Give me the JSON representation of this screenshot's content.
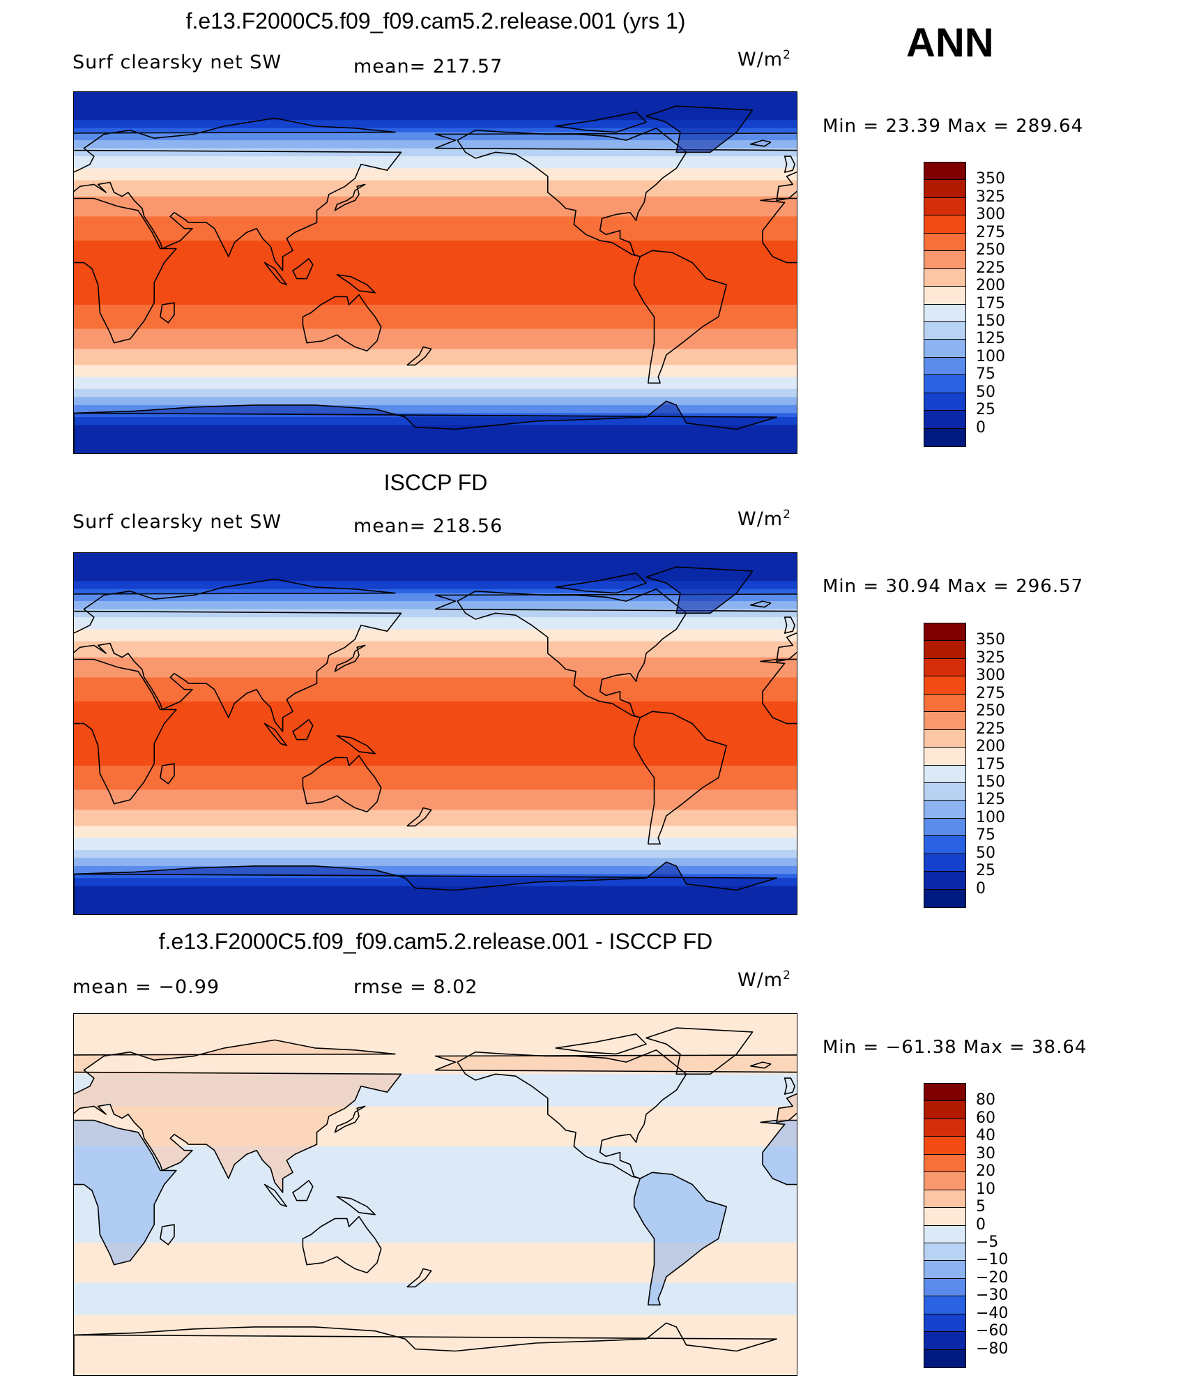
{
  "season": "ANN",
  "units": {
    "base": "W/m",
    "exp": "2"
  },
  "panels": [
    {
      "id": "model",
      "title": "f.e13.F2000C5.f09_f09.cam5.2.release.001 (yrs 1)",
      "left_label": "Surf clearsky net SW",
      "center_label": "mean= 217.57",
      "min_max": "Min =   23.39  Max  =  289.64",
      "colorbar_ticks": [
        "350",
        "325",
        "300",
        "275",
        "250",
        "225",
        "200",
        "175",
        "150",
        "125",
        "100",
        "75",
        "50",
        "25",
        "0"
      ],
      "colorbar_colors": [
        "#7f0000",
        "#b21a00",
        "#d42e0a",
        "#f24b14",
        "#f7703a",
        "#f9986e",
        "#fcc6a4",
        "#fde9d6",
        "#dce9f7",
        "#b8d2f3",
        "#8db4f0",
        "#5b8ceb",
        "#2b62e3",
        "#1442cc",
        "#0a28a8",
        "#001a80"
      ],
      "map_style": "abs"
    },
    {
      "id": "obs",
      "title": "ISCCP FD",
      "left_label": "Surf clearsky net SW",
      "center_label": "mean= 218.56",
      "min_max": "Min =   30.94  Max  =  296.57",
      "colorbar_ticks": [
        "350",
        "325",
        "300",
        "275",
        "250",
        "225",
        "200",
        "175",
        "150",
        "125",
        "100",
        "75",
        "50",
        "25",
        "0"
      ],
      "colorbar_colors": [
        "#7f0000",
        "#b21a00",
        "#d42e0a",
        "#f24b14",
        "#f7703a",
        "#f9986e",
        "#fcc6a4",
        "#fde9d6",
        "#dce9f7",
        "#b8d2f3",
        "#8db4f0",
        "#5b8ceb",
        "#2b62e3",
        "#1442cc",
        "#0a28a8",
        "#001a80"
      ],
      "map_style": "abs"
    },
    {
      "id": "diff",
      "title": "f.e13.F2000C5.f09_f09.cam5.2.release.001 - ISCCP FD",
      "left_label": "mean =    −0.99",
      "center_label": "rmse =      8.02",
      "min_max": "Min = −61.38  Max  =    38.64",
      "colorbar_ticks": [
        "80",
        "60",
        "40",
        "30",
        "20",
        "10",
        "5",
        "0",
        "−5",
        "−10",
        "−20",
        "−30",
        "−40",
        "−60",
        "−80"
      ],
      "colorbar_colors": [
        "#7f0000",
        "#b21a00",
        "#d42e0a",
        "#f24b14",
        "#f7703a",
        "#f9986e",
        "#fcc6a4",
        "#fde9d6",
        "#dce9f7",
        "#b8d2f3",
        "#8db4f0",
        "#5b8ceb",
        "#2b62e3",
        "#1442cc",
        "#0a28a8",
        "#001a80"
      ],
      "map_style": "diff"
    }
  ]
}
